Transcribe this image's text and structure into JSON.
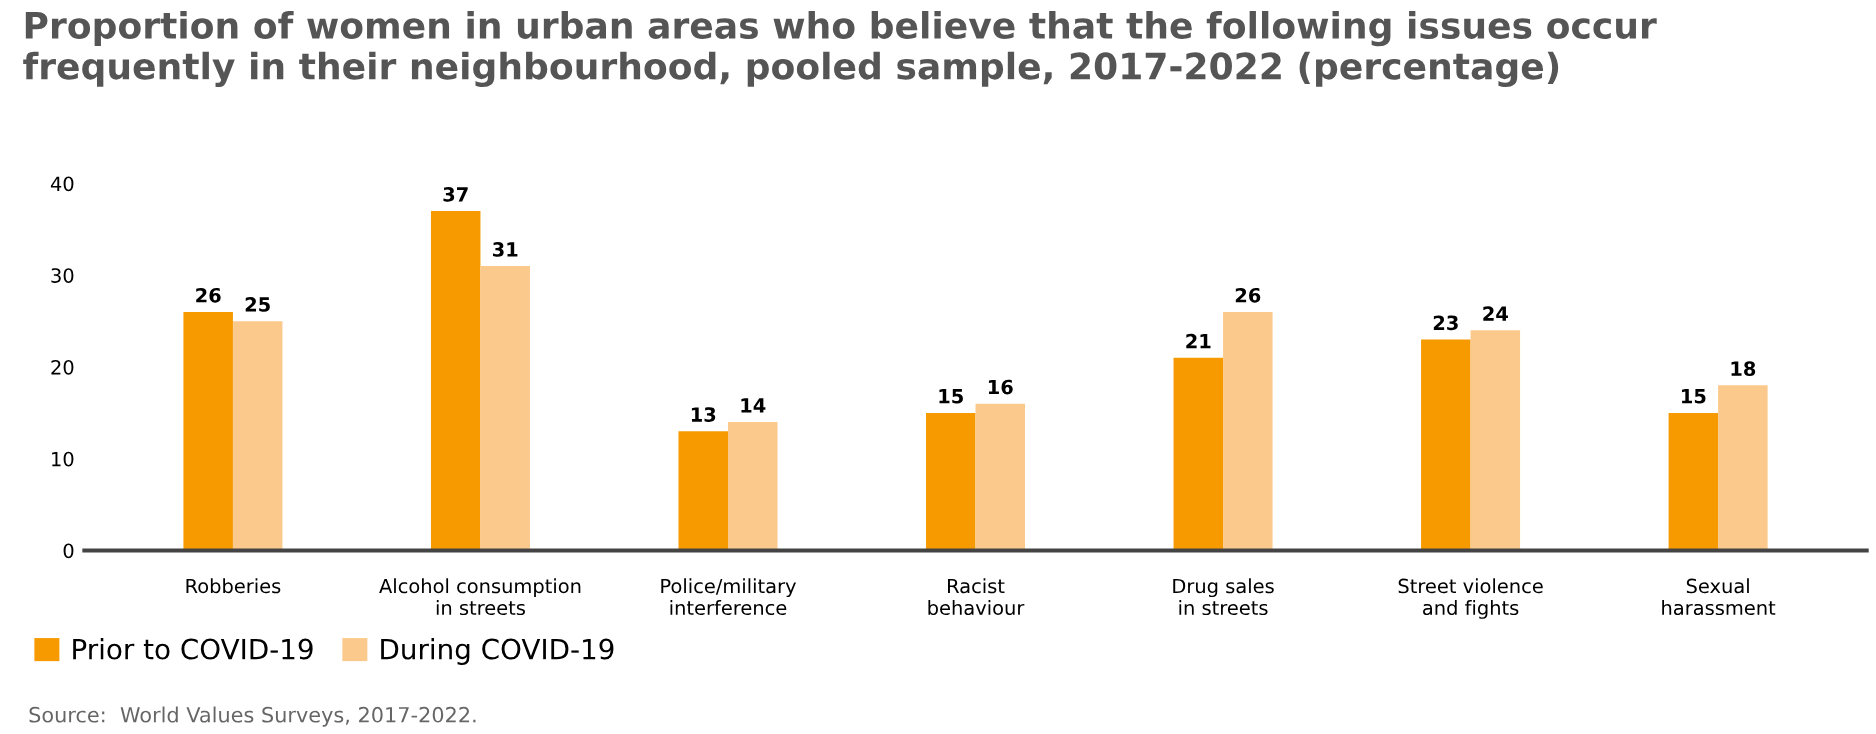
{
  "chart_data": {
    "type": "bar",
    "title": "Proportion of women in urban areas who believe that the following issues occur frequently in their neighbourhood, pooled sample, 2017-2022 (percentage)",
    "categories": [
      "Robberies",
      "Alcohol consumption\nin streets",
      "Police/military\ninterference",
      "Racist\nbehaviour",
      "Drug sales\nin streets",
      "Street violence\nand fights",
      "Sexual\nharassment"
    ],
    "series": [
      {
        "name": "Prior to COVID-19",
        "color": "#f79a00",
        "values": [
          26,
          37,
          13,
          15,
          21,
          23,
          15
        ]
      },
      {
        "name": "During COVID-19",
        "color": "#fcc98c",
        "values": [
          25,
          31,
          14,
          16,
          26,
          24,
          18
        ]
      }
    ],
    "ylim": [
      0,
      40
    ],
    "yticks": [
      0,
      10,
      20,
      30,
      40
    ],
    "grid": false,
    "legend": "bottom left",
    "data_labels": true,
    "annotations": [
      "Source:  World Values Surveys, 2017-2022."
    ]
  }
}
